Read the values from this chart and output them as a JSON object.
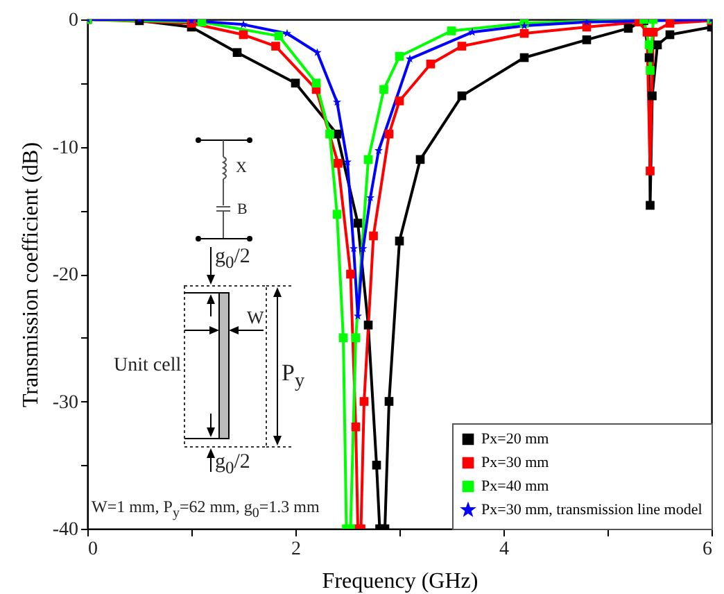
{
  "chart_data": {
    "type": "line",
    "xlabel": "Frequency (GHz)",
    "ylabel": "Transmission coefficient (dB)",
    "xlim": [
      0,
      6
    ],
    "xticks": [
      0,
      {
        "value": 1,
        "label": null
      },
      2,
      {
        "value": 3,
        "label": null
      },
      4,
      {
        "value": 5,
        "label": null
      },
      6
    ],
    "ylim": [
      -40,
      0
    ],
    "yticks": [
      -40,
      {
        "value": -35,
        "label": null
      },
      -30,
      {
        "value": -25,
        "label": null
      },
      -20,
      {
        "value": -15,
        "label": null
      },
      -10,
      {
        "value": -5,
        "label": null
      },
      0
    ],
    "grid": false,
    "legend": "bottom right",
    "line_style": "solid",
    "annotations": [
      "X",
      "B",
      "g$_{0}$/2",
      "W",
      "Unit cell",
      "P$_{y}$",
      "g$_{0}$/2",
      "W=1 mm, P$_{y}$=62 mm, g$_{0}$=1.3 mm"
    ],
    "series": [
      {
        "name": "Px=20 mm",
        "color": "#000000",
        "marker": "square",
        "x": [
          0,
          0.5,
          1,
          1.44,
          2,
          2.4,
          2.6,
          2.7,
          2.78,
          2.81,
          2.86,
          2.9,
          3.0,
          3.2,
          3.6,
          4.2,
          4.8,
          5.2,
          5.35,
          5.4,
          5.41,
          5.43,
          5.48,
          5.6,
          6
        ],
        "values": [
          0,
          -0.1,
          -0.6,
          -2.6,
          -5,
          -9,
          -16,
          -24,
          -35,
          -40,
          -40,
          -30,
          -17.4,
          -11,
          -6,
          -3,
          -1.6,
          -0.7,
          -0.1,
          -3,
          -14.6,
          -6,
          -2,
          -1.2,
          -0.6
        ]
      },
      {
        "name": "Px=30 mm",
        "color": "#ff0000",
        "marker": "square",
        "x": [
          0,
          1,
          1.5,
          1.81,
          2.2,
          2.41,
          2.53,
          2.58,
          2.6,
          2.63,
          2.66,
          2.75,
          2.9,
          3.0,
          3.3,
          3.6,
          4.2,
          4.8,
          5.3,
          5.38,
          5.41,
          5.44,
          5.6,
          6
        ],
        "values": [
          0,
          -0.3,
          -1.2,
          -2.1,
          -5.5,
          -11.3,
          -20,
          -32,
          -40,
          -40,
          -30,
          -17,
          -9,
          -6.4,
          -3.5,
          -2.1,
          -1.1,
          -0.6,
          -0.2,
          -1,
          -11.9,
          -1,
          -0.3,
          -0.1
        ]
      },
      {
        "name": "Px=40 mm",
        "color": "#00ff00",
        "marker": "square",
        "x": [
          0,
          1.1,
          1.84,
          2.2,
          2.33,
          2.4,
          2.46,
          2.49,
          2.53,
          2.58,
          2.7,
          2.85,
          3.0,
          3.5,
          4.2,
          5.35,
          5.4,
          5.41,
          5.44,
          6
        ],
        "values": [
          0,
          -0.2,
          -1.3,
          -5,
          -9,
          -15.3,
          -25,
          -40,
          -40,
          -25,
          -11,
          -5.5,
          -2.9,
          -0.9,
          -0.3,
          0,
          -2,
          -4,
          0,
          0
        ]
      },
      {
        "name": "Px=30 mm, transmission line model",
        "color": "#0000ff",
        "marker": "star",
        "x": [
          0,
          0.5,
          1,
          1.5,
          1.92,
          2.21,
          2.4,
          2.5,
          2.56,
          2.6,
          2.65,
          2.72,
          2.8,
          3.1,
          3.7,
          4.2,
          4.8,
          6
        ],
        "values": [
          0,
          0,
          -0.1,
          -0.4,
          -1.1,
          -2.6,
          -6.5,
          -11.2,
          -18,
          -23.3,
          -18,
          -14,
          -10.3,
          -3.1,
          -1.0,
          -0.5,
          -0.2,
          0
        ]
      }
    ]
  }
}
